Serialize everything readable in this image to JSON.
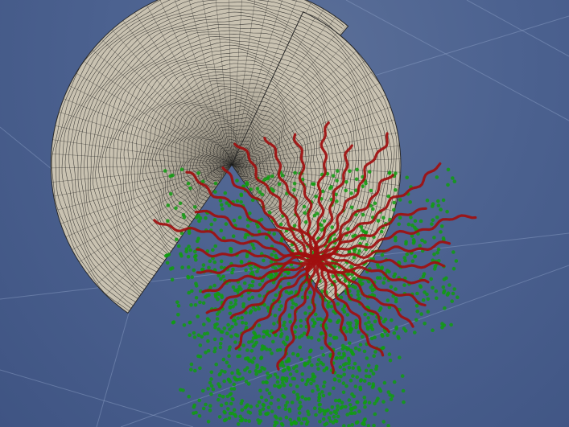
{
  "viewport": {
    "background_top": "#5b6f98",
    "background_bottom": "#3f5483",
    "grid_color": "#8ea2c8"
  },
  "surface": {
    "fill_color": "#c9c2b1",
    "wire_color": "#1a1a1a",
    "shading_color": "#6a6458"
  },
  "rays": {
    "color": "#a00f0f",
    "count": 32
  },
  "points": {
    "color": "#119c11",
    "count": 1400
  }
}
